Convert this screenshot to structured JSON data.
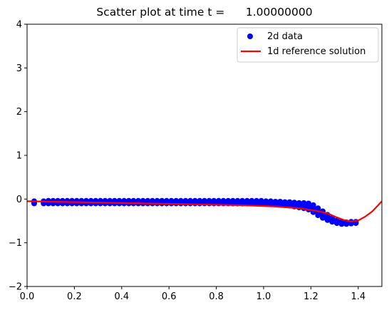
{
  "chart_data": {
    "type": "scatter",
    "title": "Scatter plot at time t =      1.00000000",
    "xlabel": "",
    "ylabel": "",
    "xlim": [
      0.0,
      1.5
    ],
    "ylim": [
      -2,
      4
    ],
    "x_ticks": [
      "0.0",
      "0.2",
      "0.4",
      "0.6",
      "0.8",
      "1.0",
      "1.2",
      "1.4"
    ],
    "y_ticks": [
      "-2",
      "-1",
      "0",
      "1",
      "2",
      "3",
      "4"
    ],
    "grid": false,
    "legend_position": "top-right",
    "legend": [
      {
        "label": "2d data",
        "marker": "circle",
        "color": "#0000ff"
      },
      {
        "label": "1d reference solution",
        "marker": "line",
        "color": "#ff0000"
      }
    ],
    "series": [
      {
        "name": "2d data",
        "kind": "scatter",
        "color": "#0000ff",
        "x": [
          0.03,
          0.07,
          0.09,
          0.11,
          0.13,
          0.15,
          0.17,
          0.19,
          0.21,
          0.23,
          0.25,
          0.27,
          0.29,
          0.31,
          0.33,
          0.35,
          0.37,
          0.39,
          0.41,
          0.43,
          0.45,
          0.47,
          0.49,
          0.51,
          0.53,
          0.55,
          0.57,
          0.59,
          0.61,
          0.63,
          0.65,
          0.67,
          0.69,
          0.71,
          0.73,
          0.75,
          0.77,
          0.79,
          0.81,
          0.83,
          0.85,
          0.87,
          0.89,
          0.91,
          0.93,
          0.95,
          0.97,
          0.99,
          1.01,
          1.03,
          1.05,
          1.07,
          1.09,
          1.11,
          1.13,
          1.15,
          1.17,
          1.19,
          1.21,
          1.23,
          1.25,
          1.27,
          1.29,
          1.31,
          1.33,
          1.35,
          1.37,
          1.39
        ],
        "y": [
          -0.1,
          -0.1,
          -0.1,
          -0.1,
          -0.1,
          -0.1,
          -0.1,
          -0.1,
          -0.1,
          -0.1,
          -0.1,
          -0.1,
          -0.1,
          -0.1,
          -0.1,
          -0.1,
          -0.1,
          -0.1,
          -0.1,
          -0.1,
          -0.1,
          -0.1,
          -0.1,
          -0.1,
          -0.1,
          -0.1,
          -0.1,
          -0.1,
          -0.1,
          -0.1,
          -0.1,
          -0.1,
          -0.1,
          -0.1,
          -0.1,
          -0.1,
          -0.1,
          -0.1,
          -0.1,
          -0.1,
          -0.1,
          -0.1,
          -0.1,
          -0.1,
          -0.1,
          -0.1,
          -0.1,
          -0.1,
          -0.11,
          -0.11,
          -0.12,
          -0.13,
          -0.14,
          -0.15,
          -0.17,
          -0.19,
          -0.21,
          -0.24,
          -0.3,
          -0.37,
          -0.43,
          -0.48,
          -0.52,
          -0.55,
          -0.57,
          -0.57,
          -0.56,
          -0.55
        ],
        "y_spread": [
          0.05,
          0.05,
          0.06,
          0.06,
          0.06,
          0.06,
          0.06,
          0.06,
          0.06,
          0.06,
          0.06,
          0.06,
          0.06,
          0.06,
          0.06,
          0.06,
          0.06,
          0.06,
          0.06,
          0.06,
          0.06,
          0.06,
          0.06,
          0.06,
          0.06,
          0.06,
          0.06,
          0.06,
          0.06,
          0.06,
          0.06,
          0.06,
          0.06,
          0.06,
          0.06,
          0.06,
          0.06,
          0.06,
          0.06,
          0.06,
          0.06,
          0.06,
          0.06,
          0.06,
          0.06,
          0.06,
          0.06,
          0.06,
          0.06,
          0.06,
          0.06,
          0.07,
          0.07,
          0.08,
          0.09,
          0.1,
          0.12,
          0.14,
          0.16,
          0.16,
          0.15,
          0.12,
          0.09,
          0.06,
          0.05,
          0.04,
          0.04,
          0.03
        ]
      },
      {
        "name": "1d reference solution",
        "kind": "line",
        "color": "#ff0000",
        "x": [
          0.0,
          0.1,
          0.2,
          0.3,
          0.4,
          0.5,
          0.6,
          0.7,
          0.8,
          0.9,
          1.0,
          1.05,
          1.1,
          1.15,
          1.2,
          1.25,
          1.28,
          1.31,
          1.34,
          1.37,
          1.4,
          1.43,
          1.46,
          1.5
        ],
        "y": [
          -0.05,
          -0.06,
          -0.07,
          -0.08,
          -0.09,
          -0.1,
          -0.11,
          -0.12,
          -0.13,
          -0.14,
          -0.16,
          -0.17,
          -0.19,
          -0.21,
          -0.25,
          -0.3,
          -0.35,
          -0.42,
          -0.48,
          -0.51,
          -0.49,
          -0.4,
          -0.28,
          -0.05
        ]
      }
    ]
  }
}
